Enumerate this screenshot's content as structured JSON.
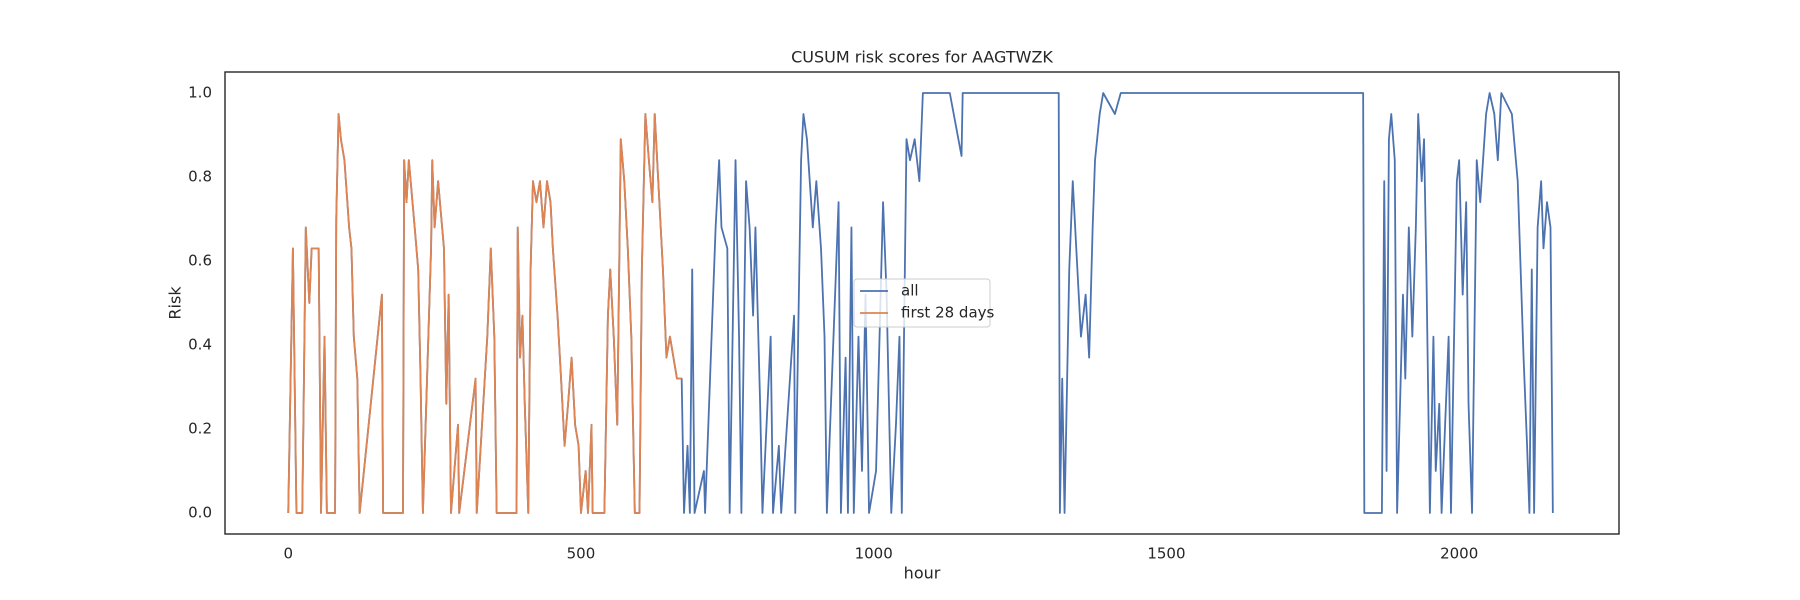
{
  "chart_data": {
    "type": "line",
    "title": "CUSUM risk scores for AAGTWZK",
    "x_label": "hour",
    "y_label": "Risk",
    "xlim": [
      -108,
      2273
    ],
    "ylim": [
      -0.05,
      1.05
    ],
    "xticks": [
      0,
      500,
      1000,
      1500,
      2000
    ],
    "yticks": [
      {
        "value": 0,
        "label": "0.0"
      },
      0.2,
      0.4,
      0.6,
      0.8,
      {
        "value": 1,
        "label": "1.0"
      }
    ],
    "legend": "center",
    "series": [
      {
        "name": "all",
        "color": "#4c72b0",
        "x": [
          0,
          8,
          14,
          24,
          30,
          36,
          40,
          52,
          56,
          62,
          66,
          80,
          82,
          86,
          90,
          96,
          104,
          108,
          112,
          118,
          122,
          160,
          162,
          196,
          198,
          202,
          206,
          216,
          222,
          226,
          230,
          244,
          246,
          250,
          256,
          266,
          270,
          274,
          278,
          290,
          292,
          320,
          322,
          340,
          346,
          352,
          356,
          390,
          392,
          396,
          400,
          404,
          410,
          414,
          418,
          424,
          430,
          436,
          442,
          448,
          452,
          460,
          466,
          472,
          478,
          484,
          490,
          496,
          500,
          508,
          512,
          518,
          520,
          540,
          546,
          550,
          556,
          562,
          568,
          574,
          580,
          586,
          592,
          600,
          604,
          610,
          616,
          622,
          626,
          640,
          646,
          652,
          664,
          672,
          676,
          682,
          686,
          690,
          694,
          710,
          712,
          730,
          736,
          740,
          750,
          754,
          764,
          770,
          774,
          782,
          788,
          794,
          798,
          806,
          810,
          824,
          828,
          838,
          842,
          864,
          866,
          876,
          880,
          886,
          896,
          902,
          910,
          916,
          920,
          940,
          944,
          952,
          956,
          962,
          966,
          974,
          980,
          986,
          992,
          1004,
          1010,
          1016,
          1022,
          1030,
          1038,
          1044,
          1048,
          1056,
          1062,
          1070,
          1078,
          1084,
          1130,
          1150,
          1152,
          1316,
          1318,
          1322,
          1326,
          1334,
          1340,
          1346,
          1354,
          1362,
          1368,
          1374,
          1378,
          1386,
          1392,
          1412,
          1422,
          1836,
          1838,
          1868,
          1872,
          1876,
          1880,
          1884,
          1890,
          1894,
          1904,
          1908,
          1914,
          1920,
          1926,
          1930,
          1936,
          1940,
          1944,
          1950,
          1956,
          1960,
          1966,
          1970,
          1982,
          1986,
          1996,
          2000,
          2006,
          2012,
          2016,
          2022,
          2030,
          2036,
          2046,
          2052,
          2060,
          2066,
          2072,
          2090,
          2100,
          2110,
          2116,
          2120,
          2124,
          2128,
          2134,
          2140,
          2144,
          2150,
          2156,
          2160
        ],
        "values": [
          0,
          0.63,
          0,
          0,
          0.68,
          0.5,
          0.63,
          0.63,
          0,
          0.42,
          0,
          0,
          0.7,
          0.95,
          0.89,
          0.84,
          0.68,
          0.63,
          0.42,
          0.32,
          0,
          0.52,
          0,
          0,
          0.84,
          0.74,
          0.84,
          0.68,
          0.58,
          0.32,
          0,
          0.63,
          0.84,
          0.68,
          0.79,
          0.63,
          0.26,
          0.52,
          0,
          0.21,
          0,
          0.32,
          0,
          0.42,
          0.63,
          0.42,
          0,
          0,
          0.68,
          0.37,
          0.47,
          0.26,
          0,
          0.58,
          0.79,
          0.74,
          0.79,
          0.68,
          0.79,
          0.74,
          0.63,
          0.47,
          0.32,
          0.16,
          0.26,
          0.37,
          0.21,
          0.16,
          0,
          0.1,
          0,
          0.21,
          0,
          0,
          0.47,
          0.58,
          0.42,
          0.21,
          0.89,
          0.79,
          0.63,
          0.42,
          0,
          0,
          0.58,
          0.95,
          0.84,
          0.74,
          0.95,
          0.58,
          0.37,
          0.42,
          0.32,
          0.32,
          0,
          0.16,
          0,
          0.58,
          0,
          0.1,
          0,
          0.68,
          0.84,
          0.68,
          0.63,
          0,
          0.84,
          0.42,
          0,
          0.79,
          0.68,
          0.47,
          0.68,
          0.26,
          0,
          0.42,
          0,
          0.16,
          0,
          0.47,
          0,
          0.84,
          0.95,
          0.89,
          0.68,
          0.79,
          0.63,
          0.42,
          0,
          0.74,
          0,
          0.37,
          0,
          0.68,
          0,
          0.42,
          0.1,
          0.52,
          0,
          0.1,
          0.42,
          0.74,
          0.52,
          0,
          0.21,
          0.42,
          0,
          0.89,
          0.84,
          0.89,
          0.79,
          1,
          1,
          0.85,
          1,
          1,
          0,
          0.32,
          0,
          0.58,
          0.79,
          0.63,
          0.42,
          0.52,
          0.37,
          0.68,
          0.84,
          0.95,
          1,
          0.95,
          1,
          1,
          0,
          0,
          0.79,
          0.1,
          0.89,
          0.95,
          0.84,
          0,
          0.52,
          0.32,
          0.68,
          0.42,
          0.68,
          0.95,
          0.79,
          0.89,
          0.58,
          0,
          0.42,
          0.1,
          0.26,
          0,
          0.42,
          0,
          0.79,
          0.84,
          0.52,
          0.74,
          0.26,
          0,
          0.84,
          0.74,
          0.95,
          1,
          0.95,
          0.84,
          1,
          0.95,
          0.79,
          0.37,
          0.16,
          0,
          0.58,
          0,
          0.68,
          0.79,
          0.63,
          0.74,
          0.68,
          0
        ]
      },
      {
        "name": "first 28 days",
        "color": "#dd8452",
        "x": [
          0,
          8,
          14,
          24,
          30,
          36,
          40,
          52,
          56,
          62,
          66,
          80,
          82,
          86,
          90,
          96,
          104,
          108,
          112,
          118,
          122,
          160,
          162,
          196,
          198,
          202,
          206,
          216,
          222,
          226,
          230,
          244,
          246,
          250,
          256,
          266,
          270,
          274,
          278,
          290,
          292,
          320,
          322,
          340,
          346,
          352,
          356,
          390,
          392,
          396,
          400,
          404,
          410,
          414,
          418,
          424,
          430,
          436,
          442,
          448,
          452,
          460,
          466,
          472,
          478,
          484,
          490,
          496,
          500,
          508,
          512,
          518,
          520,
          540,
          546,
          550,
          556,
          562,
          568,
          574,
          580,
          586,
          592,
          600,
          604,
          610,
          616,
          622,
          626,
          640,
          646,
          652,
          664,
          672
        ],
        "values": [
          0,
          0.63,
          0,
          0,
          0.68,
          0.5,
          0.63,
          0.63,
          0,
          0.42,
          0,
          0,
          0.7,
          0.95,
          0.89,
          0.84,
          0.68,
          0.63,
          0.42,
          0.32,
          0,
          0.52,
          0,
          0,
          0.84,
          0.74,
          0.84,
          0.68,
          0.58,
          0.32,
          0,
          0.63,
          0.84,
          0.68,
          0.79,
          0.63,
          0.26,
          0.52,
          0,
          0.21,
          0,
          0.32,
          0,
          0.42,
          0.63,
          0.42,
          0,
          0,
          0.68,
          0.37,
          0.47,
          0.26,
          0,
          0.58,
          0.79,
          0.74,
          0.79,
          0.68,
          0.79,
          0.74,
          0.63,
          0.47,
          0.32,
          0.16,
          0.26,
          0.37,
          0.21,
          0.16,
          0,
          0.1,
          0,
          0.21,
          0,
          0,
          0.47,
          0.58,
          0.42,
          0.21,
          0.89,
          0.79,
          0.63,
          0.42,
          0,
          0,
          0.58,
          0.95,
          0.84,
          0.74,
          0.95,
          0.58,
          0.37,
          0.42,
          0.32,
          0.32
        ]
      }
    ]
  }
}
